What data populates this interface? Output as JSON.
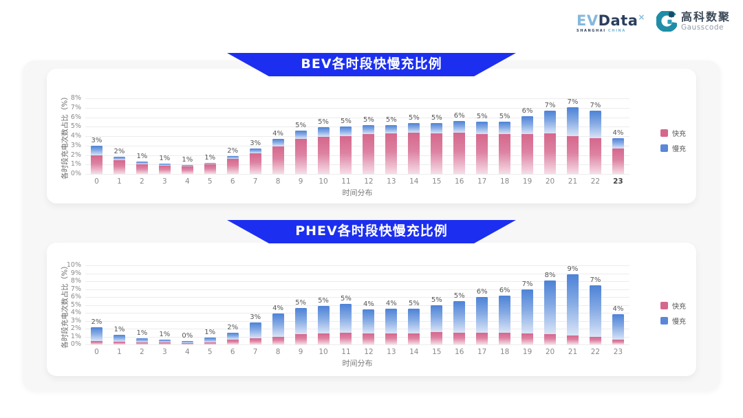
{
  "header": {
    "evdata": {
      "ev": "EV",
      "data": "Data",
      "sup": "×",
      "sub_left": "SHANGHAI",
      "sub_right": "CHINA"
    },
    "gausscode": {
      "cn": "高科数聚",
      "en": "Gausscode"
    }
  },
  "colors": {
    "banner_blue": "#1c2ff0",
    "fast_pink": "#d5678c",
    "slow_blue": "#5b87d8",
    "card_bg": "#ffffff",
    "panel_bg": "#f7f7f8"
  },
  "chart_data": [
    {
      "type": "bar",
      "stacked": true,
      "title": "BEV各时段快慢充比例",
      "xlabel": "时间分布",
      "ylabel": "各时段充电次数占比（%）",
      "ylim": [
        0,
        8
      ],
      "yticks": [
        "0%",
        "1%",
        "2%",
        "3%",
        "4%",
        "5%",
        "6%",
        "7%",
        "8%"
      ],
      "grid": true,
      "legend_position": "right",
      "bold_last_xtick": true,
      "categories": [
        0,
        1,
        2,
        3,
        4,
        5,
        6,
        7,
        8,
        9,
        10,
        11,
        12,
        13,
        14,
        15,
        16,
        17,
        18,
        19,
        20,
        21,
        22,
        23
      ],
      "series": [
        {
          "name": "快充",
          "color": "#d5678c",
          "values": [
            2.0,
            1.45,
            1.0,
            0.85,
            0.8,
            1.0,
            1.6,
            2.2,
            2.9,
            3.7,
            3.9,
            4.0,
            4.2,
            4.3,
            4.35,
            4.3,
            4.4,
            4.2,
            4.2,
            4.25,
            4.3,
            4.2,
            3.8,
            2.7
          ]
        },
        {
          "name": "慢充",
          "color": "#5b87d8",
          "values": [
            0.95,
            0.4,
            0.3,
            0.25,
            0.15,
            0.2,
            0.3,
            0.5,
            0.8,
            0.9,
            1.05,
            1.05,
            0.95,
            0.9,
            1.05,
            1.1,
            1.2,
            1.3,
            1.3,
            1.85,
            2.4,
            3.2,
            2.9,
            1.1
          ]
        }
      ],
      "labels": [
        "3%",
        "2%",
        "1%",
        "1%",
        "1%",
        "1%",
        "2%",
        "3%",
        "4%",
        "5%",
        "5%",
        "5%",
        "5%",
        "5%",
        "5%",
        "5%",
        "6%",
        "5%",
        "5%",
        "6%",
        "7%",
        "7%",
        "7%",
        "4%"
      ]
    },
    {
      "type": "bar",
      "stacked": true,
      "title": "PHEV各时段快慢充比例",
      "xlabel": "时间分布",
      "ylabel": "各时段充电次数占比（%）",
      "ylim": [
        0,
        10
      ],
      "yticks": [
        "0%",
        "1%",
        "2%",
        "3%",
        "4%",
        "5%",
        "6%",
        "7%",
        "8%",
        "9%",
        "10%"
      ],
      "grid": true,
      "legend_position": "right",
      "bold_last_xtick": false,
      "categories": [
        0,
        1,
        2,
        3,
        4,
        5,
        6,
        7,
        8,
        9,
        10,
        11,
        12,
        13,
        14,
        15,
        16,
        17,
        18,
        19,
        20,
        21,
        22,
        23
      ],
      "series": [
        {
          "name": "快充",
          "color": "#d5678c",
          "values": [
            0.45,
            0.35,
            0.3,
            0.25,
            0.2,
            0.3,
            0.6,
            0.8,
            1.0,
            1.3,
            1.35,
            1.5,
            1.4,
            1.35,
            1.4,
            1.55,
            1.45,
            1.5,
            1.5,
            1.4,
            1.3,
            1.2,
            1.0,
            0.6
          ]
        },
        {
          "name": "慢充",
          "color": "#5b87d8",
          "values": [
            1.75,
            0.85,
            0.5,
            0.35,
            0.25,
            0.55,
            0.9,
            1.95,
            2.9,
            3.3,
            3.55,
            3.6,
            3.0,
            3.15,
            3.1,
            3.45,
            4.05,
            4.5,
            4.7,
            5.6,
            6.8,
            7.9,
            6.5,
            3.2
          ]
        }
      ],
      "labels": [
        "2%",
        "1%",
        "1%",
        "1%",
        "0%",
        "1%",
        "2%",
        "3%",
        "4%",
        "5%",
        "5%",
        "5%",
        "4%",
        "4%",
        "5%",
        "5%",
        "5%",
        "6%",
        "6%",
        "7%",
        "8%",
        "9%",
        "7%",
        "4%"
      ]
    }
  ]
}
